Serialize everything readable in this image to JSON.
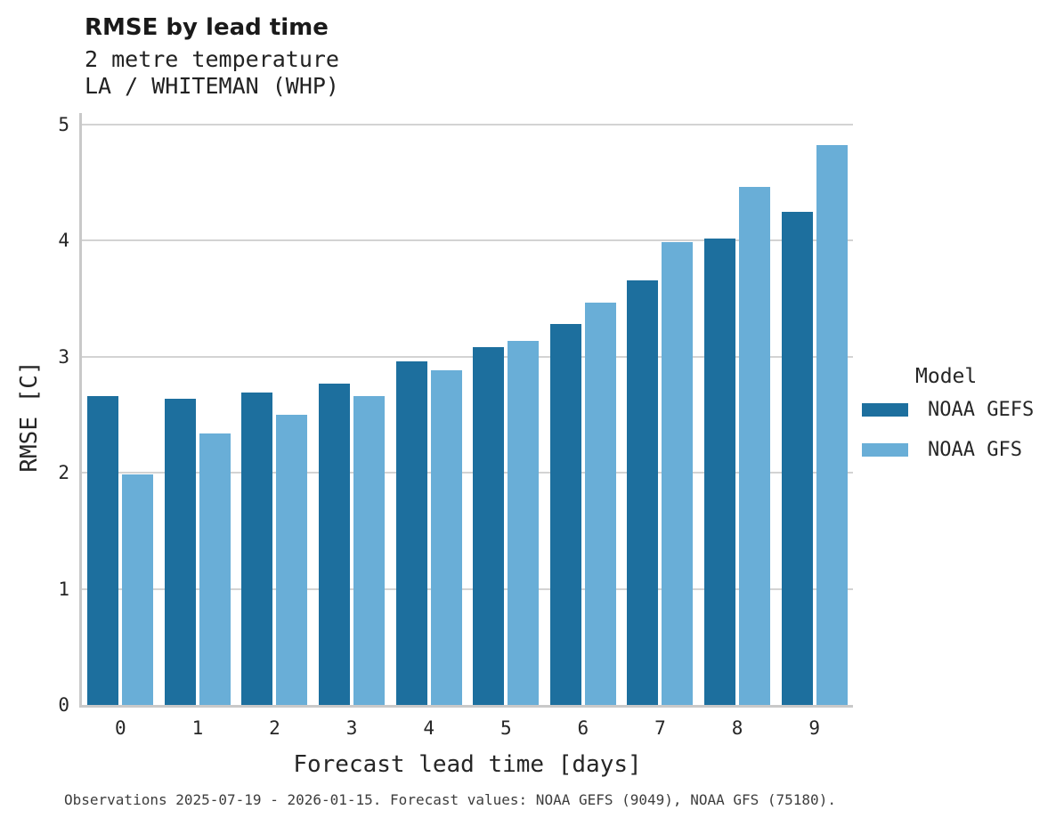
{
  "chart_data": {
    "type": "bar",
    "title": "RMSE by lead time",
    "subtitle": [
      "2 metre temperature",
      "LA / WHITEMAN (WHP)"
    ],
    "categories": [
      "0",
      "1",
      "2",
      "3",
      "4",
      "5",
      "6",
      "7",
      "8",
      "9"
    ],
    "series": [
      {
        "name": "NOAA GEFS",
        "color": "#1d6f9e",
        "values": [
          2.66,
          2.64,
          2.69,
          2.77,
          2.96,
          3.08,
          3.28,
          3.66,
          4.02,
          4.25
        ]
      },
      {
        "name": "NOAA GFS",
        "color": "#69aed7",
        "values": [
          1.99,
          2.34,
          2.5,
          2.66,
          2.88,
          3.14,
          3.47,
          3.99,
          4.46,
          4.82
        ]
      }
    ],
    "xlabel": "Forecast lead time [days]",
    "ylabel": "RMSE [C]",
    "ylim": [
      0,
      5
    ],
    "yticks": [
      0,
      1,
      2,
      3,
      4,
      5
    ],
    "grid": "horizontal",
    "legend": {
      "title": "Model",
      "position": "right"
    },
    "caption": "Observations 2025-07-19 - 2026-01-15. Forecast values: NOAA GEFS (9049), NOAA GFS (75180)."
  }
}
